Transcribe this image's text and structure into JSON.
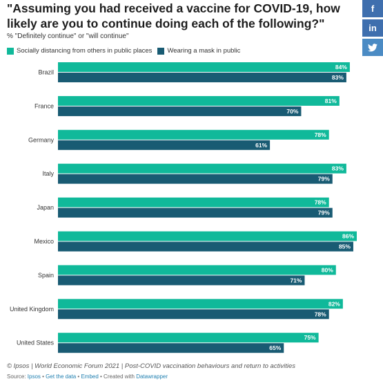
{
  "title": "\"Assuming you had received a vaccine for COVID-19, how likely are you to continue doing each of the following?\"",
  "subtitle": "% \"Definitely continue\" or \"will continue\"",
  "share": {
    "facebook": "f",
    "linkedin": "in",
    "twitter": "t"
  },
  "colors": {
    "series_a": "#10b99a",
    "series_b": "#195b73"
  },
  "footer": "© Ipsos | World Economic Forum 2021 | Post-COVID vaccination behaviours and return to activities",
  "source": {
    "prefix": "Source: ",
    "source_link": "Ipsos",
    "sep1": " • ",
    "get_data": "Get the data",
    "sep2": " • ",
    "embed": "Embed",
    "sep3": " • Created with ",
    "datawrapper": "Datawrapper"
  },
  "chart_data": {
    "type": "bar",
    "orientation": "horizontal",
    "categories": [
      "Brazil",
      "France",
      "Germany",
      "Italy",
      "Japan",
      "Mexico",
      "Spain",
      "United Kingdom",
      "United States"
    ],
    "series": [
      {
        "name": "Socially distancing from others in public places",
        "values": [
          84,
          81,
          78,
          83,
          78,
          86,
          80,
          82,
          75
        ],
        "color": "#10b99a"
      },
      {
        "name": "Wearing a mask in public",
        "values": [
          83,
          70,
          61,
          79,
          79,
          85,
          71,
          78,
          65
        ],
        "color": "#195b73"
      }
    ],
    "value_suffix": "%",
    "xlim": [
      0,
      86
    ],
    "legend_position": "top-left",
    "grid": false
  }
}
